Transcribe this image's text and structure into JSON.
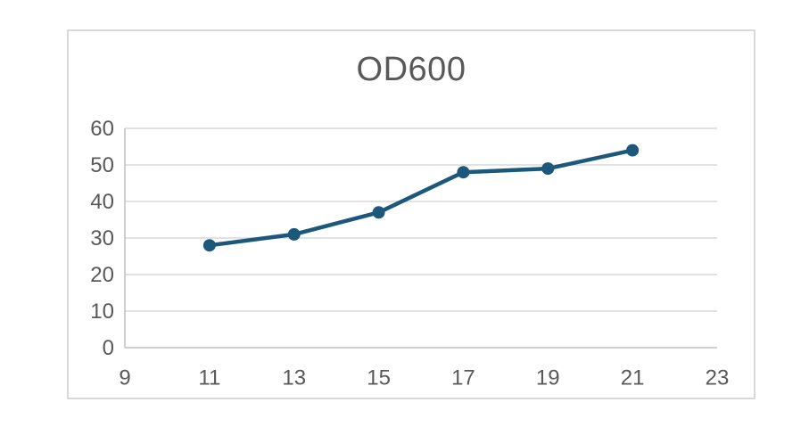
{
  "chart": {
    "colors": {
      "series": "#1B587C",
      "gridline": "#D9D9D9",
      "axis_line": "#BFBFBF",
      "text": "#595959",
      "border": "#D9D9D9",
      "background": "#FFFFFF"
    }
  },
  "chart_data": {
    "type": "line",
    "title": "OD600",
    "x": [
      11,
      13,
      15,
      17,
      19,
      21
    ],
    "values": [
      28,
      31,
      37,
      48,
      49,
      54
    ],
    "xlabel": "",
    "ylabel": "",
    "xlim": [
      9,
      23
    ],
    "ylim": [
      0,
      60
    ],
    "x_ticks": [
      9,
      11,
      13,
      15,
      17,
      19,
      21,
      23
    ],
    "y_ticks": [
      0,
      10,
      20,
      30,
      40,
      50,
      60
    ],
    "grid": "horizontal",
    "legend": "none",
    "marker": "circle",
    "line_width": 4.5,
    "marker_radius": 7
  }
}
